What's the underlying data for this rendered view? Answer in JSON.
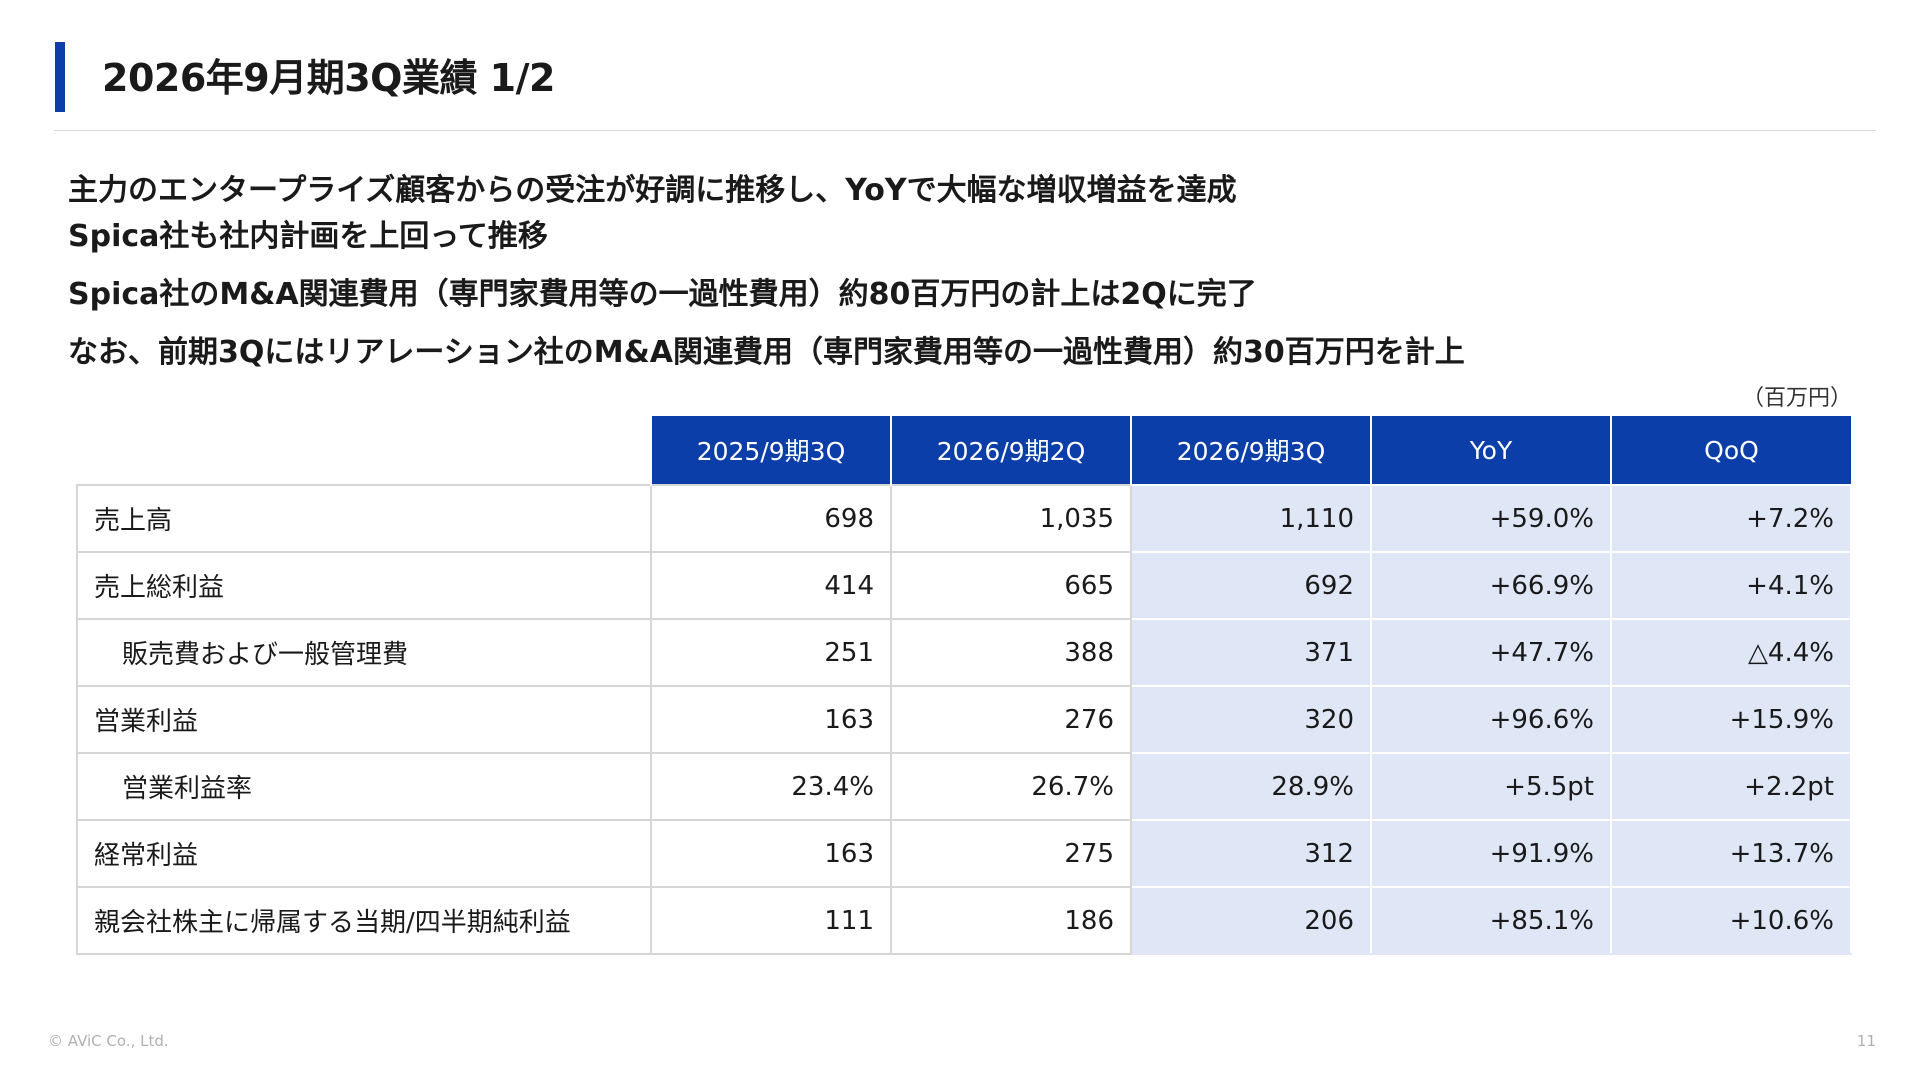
{
  "header": {
    "title": "2026年9月期3Q業績 1/2"
  },
  "summary": [
    "主力のエンタープライズ顧客からの受注が好調に推移し、YoYで大幅な増収増益を達成",
    "Spica社も社内計画を上回って推移",
    "Spica社のM&A関連費用（専門家費用等の一過性費用）約80百万円の計上は2Qに完了",
    "なお、前期3Qにはリアレーション社のM&A関連費用（専門家費用等の一過性費用）約30百万円を計上"
  ],
  "table": {
    "unit": "（百万円）",
    "columns": [
      "2025/9期3Q",
      "2026/9期2Q",
      "2026/9期3Q",
      "YoY",
      "QoQ"
    ],
    "rows": [
      {
        "label": "売上高",
        "values": [
          "698",
          "1,035",
          "1,110",
          "+59.0%",
          "+7.2%"
        ]
      },
      {
        "label": "売上総利益",
        "values": [
          "414",
          "665",
          "692",
          "+66.9%",
          "+4.1%"
        ]
      },
      {
        "label": "販売費および一般管理費",
        "values": [
          "251",
          "388",
          "371",
          "+47.7%",
          "△4.4%"
        ]
      },
      {
        "label": "営業利益",
        "values": [
          "163",
          "276",
          "320",
          "+96.6%",
          "+15.9%"
        ]
      },
      {
        "label": "営業利益率",
        "values": [
          "23.4%",
          "26.7%",
          "28.9%",
          "+5.5pt",
          "+2.2pt"
        ]
      },
      {
        "label": "経常利益",
        "values": [
          "163",
          "275",
          "312",
          "+91.9%",
          "+13.7%"
        ]
      },
      {
        "label": "親会社株主に帰属する当期/四半期純利益",
        "values": [
          "111",
          "186",
          "206",
          "+85.1%",
          "+10.6%"
        ]
      }
    ]
  },
  "footer": {
    "copyright": "© AViC Co., Ltd.",
    "page": "11"
  },
  "colors": {
    "accent": "#0b3ea8",
    "highlight": "#dfe6f6"
  }
}
